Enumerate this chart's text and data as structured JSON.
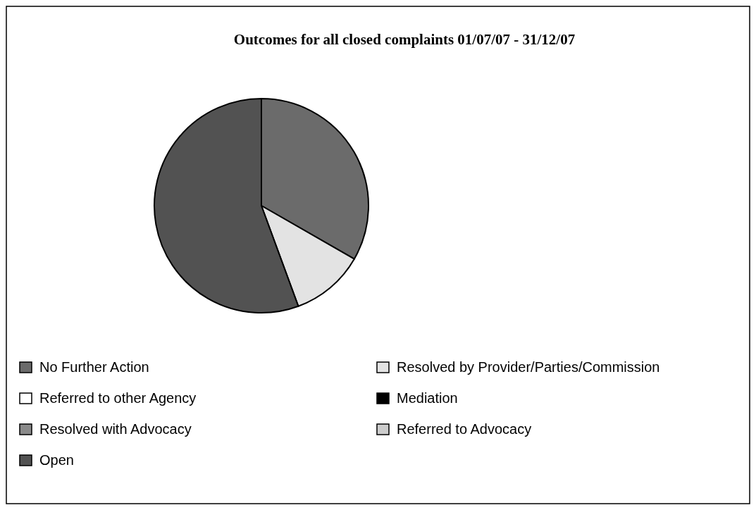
{
  "chart_data": {
    "type": "pie",
    "title": "Outcomes for all closed complaints 01/07/07 - 31/12/07",
    "categories": [
      "No Further Action",
      "Resolved by Provider/Parties/Commission",
      "Referred to other Agency",
      "Mediation",
      "Resolved with Advocacy",
      "Referred to Advocacy",
      "Open"
    ],
    "values": [
      33.3,
      11.1,
      0,
      0,
      0,
      0,
      55.6
    ],
    "colors": [
      "#6b6b6b",
      "#e3e3e3",
      "#ffffff",
      "#000000",
      "#8a8a8a",
      "#cccccc",
      "#525252"
    ],
    "legend": "bottom"
  }
}
